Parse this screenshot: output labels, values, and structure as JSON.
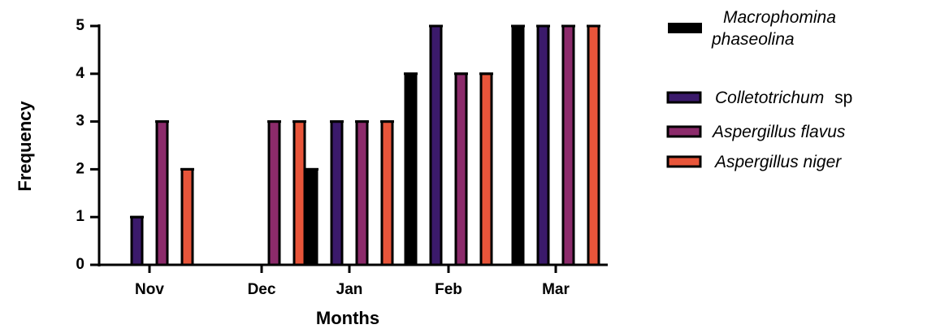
{
  "chart_data": {
    "type": "bar",
    "categories": [
      "Nov",
      "Dec",
      "Jan",
      "Feb",
      "Mar"
    ],
    "series": [
      {
        "name": "Macrophomina phaseolina",
        "values": [
          0,
          0,
          2,
          4,
          5
        ],
        "color": "#000000"
      },
      {
        "name": "Colletotrichum sp",
        "values": [
          1,
          0,
          3,
          5,
          5
        ],
        "color": "#3b1a6b"
      },
      {
        "name": "Aspergillus flavus",
        "values": [
          3,
          3,
          3,
          4,
          5
        ],
        "color": "#8c2b6b"
      },
      {
        "name": "Aspergillus niger",
        "values": [
          2,
          3,
          3,
          4,
          5
        ],
        "color": "#e8553a"
      }
    ],
    "xlabel": "Months",
    "ylabel": "Frequency",
    "ylim": [
      0,
      5
    ],
    "yticks": [
      0,
      1,
      2,
      3,
      4,
      5
    ],
    "grid": false,
    "legend_position": "right"
  },
  "legend": {
    "macrophomina_line1": "Macrophomina",
    "macrophomina_line2": "phaseolina",
    "colletotrichum_italic": "Colletotrichum",
    "colletotrichum_plain": "sp",
    "flavus": "Aspergillus flavus",
    "niger": "Aspergillus niger"
  }
}
